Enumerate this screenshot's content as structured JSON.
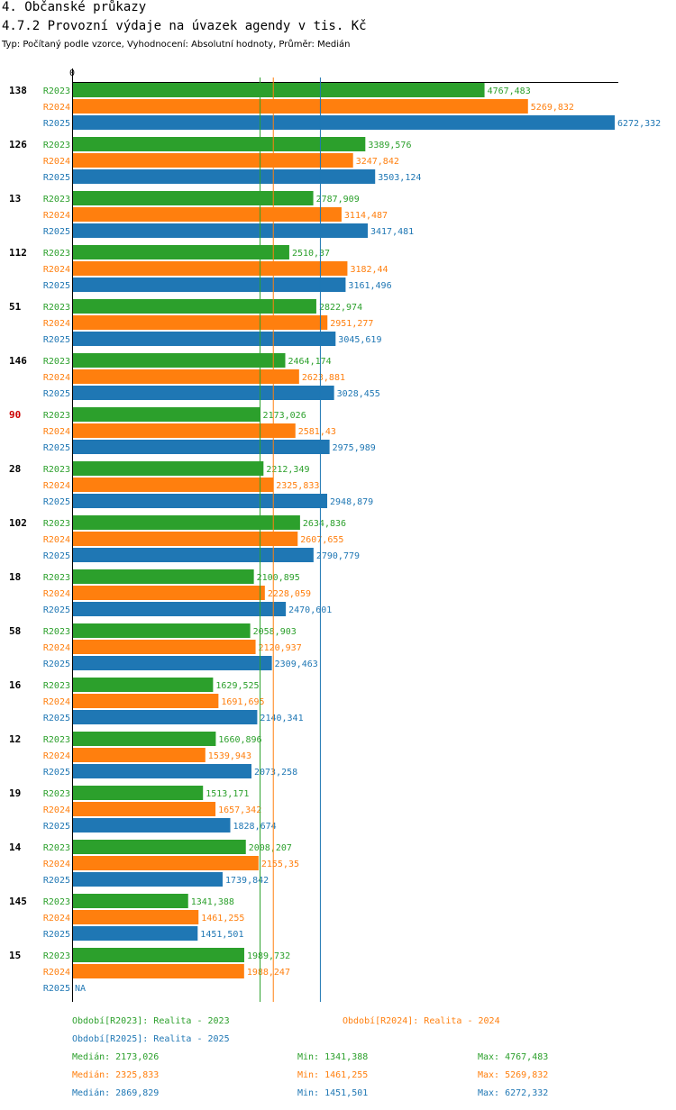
{
  "header": {
    "title": "4. Občanské průkazy",
    "chart_title": "4.7.2 Provozní výdaje na úvazek agendy v tis. Kč",
    "subtitle": "Typ: Počítaný podle vzorce, Vyhodnocení: Absolutní hodnoty, Průměr: Medián"
  },
  "colors": {
    "R2023": "#2ca02c",
    "R2024": "#ff7f0e",
    "R2025": "#1f77b4",
    "highlight": "#cc0000"
  },
  "chart_data": {
    "type": "bar",
    "orientation": "horizontal",
    "title": "4.7.2 Provozní výdaje na úvazek agendy v tis. Kč",
    "axis_zero_label": "0",
    "xlim": [
      0,
      6272.332
    ],
    "series_names": [
      "R2023",
      "R2024",
      "R2025"
    ],
    "highlight_category": "90",
    "categories": [
      {
        "id": "138",
        "values": [
          4767.483,
          5269.832,
          6272.332
        ],
        "labels": [
          "4767,483",
          "5269,832",
          "6272,332"
        ]
      },
      {
        "id": "126",
        "values": [
          3389.576,
          3247.842,
          3503.124
        ],
        "labels": [
          "3389,576",
          "3247,842",
          "3503,124"
        ]
      },
      {
        "id": "13",
        "values": [
          2787.909,
          3114.487,
          3417.481
        ],
        "labels": [
          "2787,909",
          "3114,487",
          "3417,481"
        ]
      },
      {
        "id": "112",
        "values": [
          2510.37,
          3182.44,
          3161.496
        ],
        "labels": [
          "2510,37",
          "3182,44",
          "3161,496"
        ]
      },
      {
        "id": "51",
        "values": [
          2822.974,
          2951.277,
          3045.619
        ],
        "labels": [
          "2822,974",
          "2951,277",
          "3045,619"
        ]
      },
      {
        "id": "146",
        "values": [
          2464.174,
          2623.881,
          3028.455
        ],
        "labels": [
          "2464,174",
          "2623,881",
          "3028,455"
        ]
      },
      {
        "id": "90",
        "values": [
          2173.026,
          2581.43,
          2975.989
        ],
        "labels": [
          "2173,026",
          "2581,43",
          "2975,989"
        ]
      },
      {
        "id": "28",
        "values": [
          2212.349,
          2325.833,
          2948.879
        ],
        "labels": [
          "2212,349",
          "2325,833",
          "2948,879"
        ]
      },
      {
        "id": "102",
        "values": [
          2634.836,
          2607.655,
          2790.779
        ],
        "labels": [
          "2634,836",
          "2607,655",
          "2790,779"
        ]
      },
      {
        "id": "18",
        "values": [
          2100.895,
          2228.059,
          2470.601
        ],
        "labels": [
          "2100,895",
          "2228,059",
          "2470,601"
        ]
      },
      {
        "id": "58",
        "values": [
          2058.903,
          2120.937,
          2309.463
        ],
        "labels": [
          "2058,903",
          "2120,937",
          "2309,463"
        ]
      },
      {
        "id": "16",
        "values": [
          1629.525,
          1691.695,
          2140.341
        ],
        "labels": [
          "1629,525",
          "1691,695",
          "2140,341"
        ]
      },
      {
        "id": "12",
        "values": [
          1660.896,
          1539.943,
          2073.258
        ],
        "labels": [
          "1660,896",
          "1539,943",
          "2073,258"
        ]
      },
      {
        "id": "19",
        "values": [
          1513.171,
          1657.342,
          1828.674
        ],
        "labels": [
          "1513,171",
          "1657,342",
          "1828,674"
        ]
      },
      {
        "id": "14",
        "values": [
          2008.207,
          2155.35,
          1739.842
        ],
        "labels": [
          "2008,207",
          "2155,35",
          "1739,842"
        ]
      },
      {
        "id": "145",
        "values": [
          1341.388,
          1461.255,
          1451.501
        ],
        "labels": [
          "1341,388",
          "1461,255",
          "1451,501"
        ]
      },
      {
        "id": "15",
        "values": [
          1989.732,
          1988.247,
          null
        ],
        "labels": [
          "1989,732",
          "1988,247",
          "NA"
        ]
      }
    ],
    "median_lines": [
      2173.026,
      2325.833,
      2869.829
    ]
  },
  "legend": {
    "period_2023": "Období[R2023]: Realita - 2023",
    "period_2024": "Období[R2024]: Realita - 2024",
    "period_2025": "Období[R2025]: Realita - 2025",
    "stats": [
      {
        "median": "Medián: 2173,026",
        "min": "Min: 1341,388",
        "max": "Max: 4767,483"
      },
      {
        "median": "Medián: 2325,833",
        "min": "Min: 1461,255",
        "max": "Max: 5269,832"
      },
      {
        "median": "Medián: 2869,829",
        "min": "Min: 1451,501",
        "max": "Max: 6272,332"
      }
    ]
  }
}
